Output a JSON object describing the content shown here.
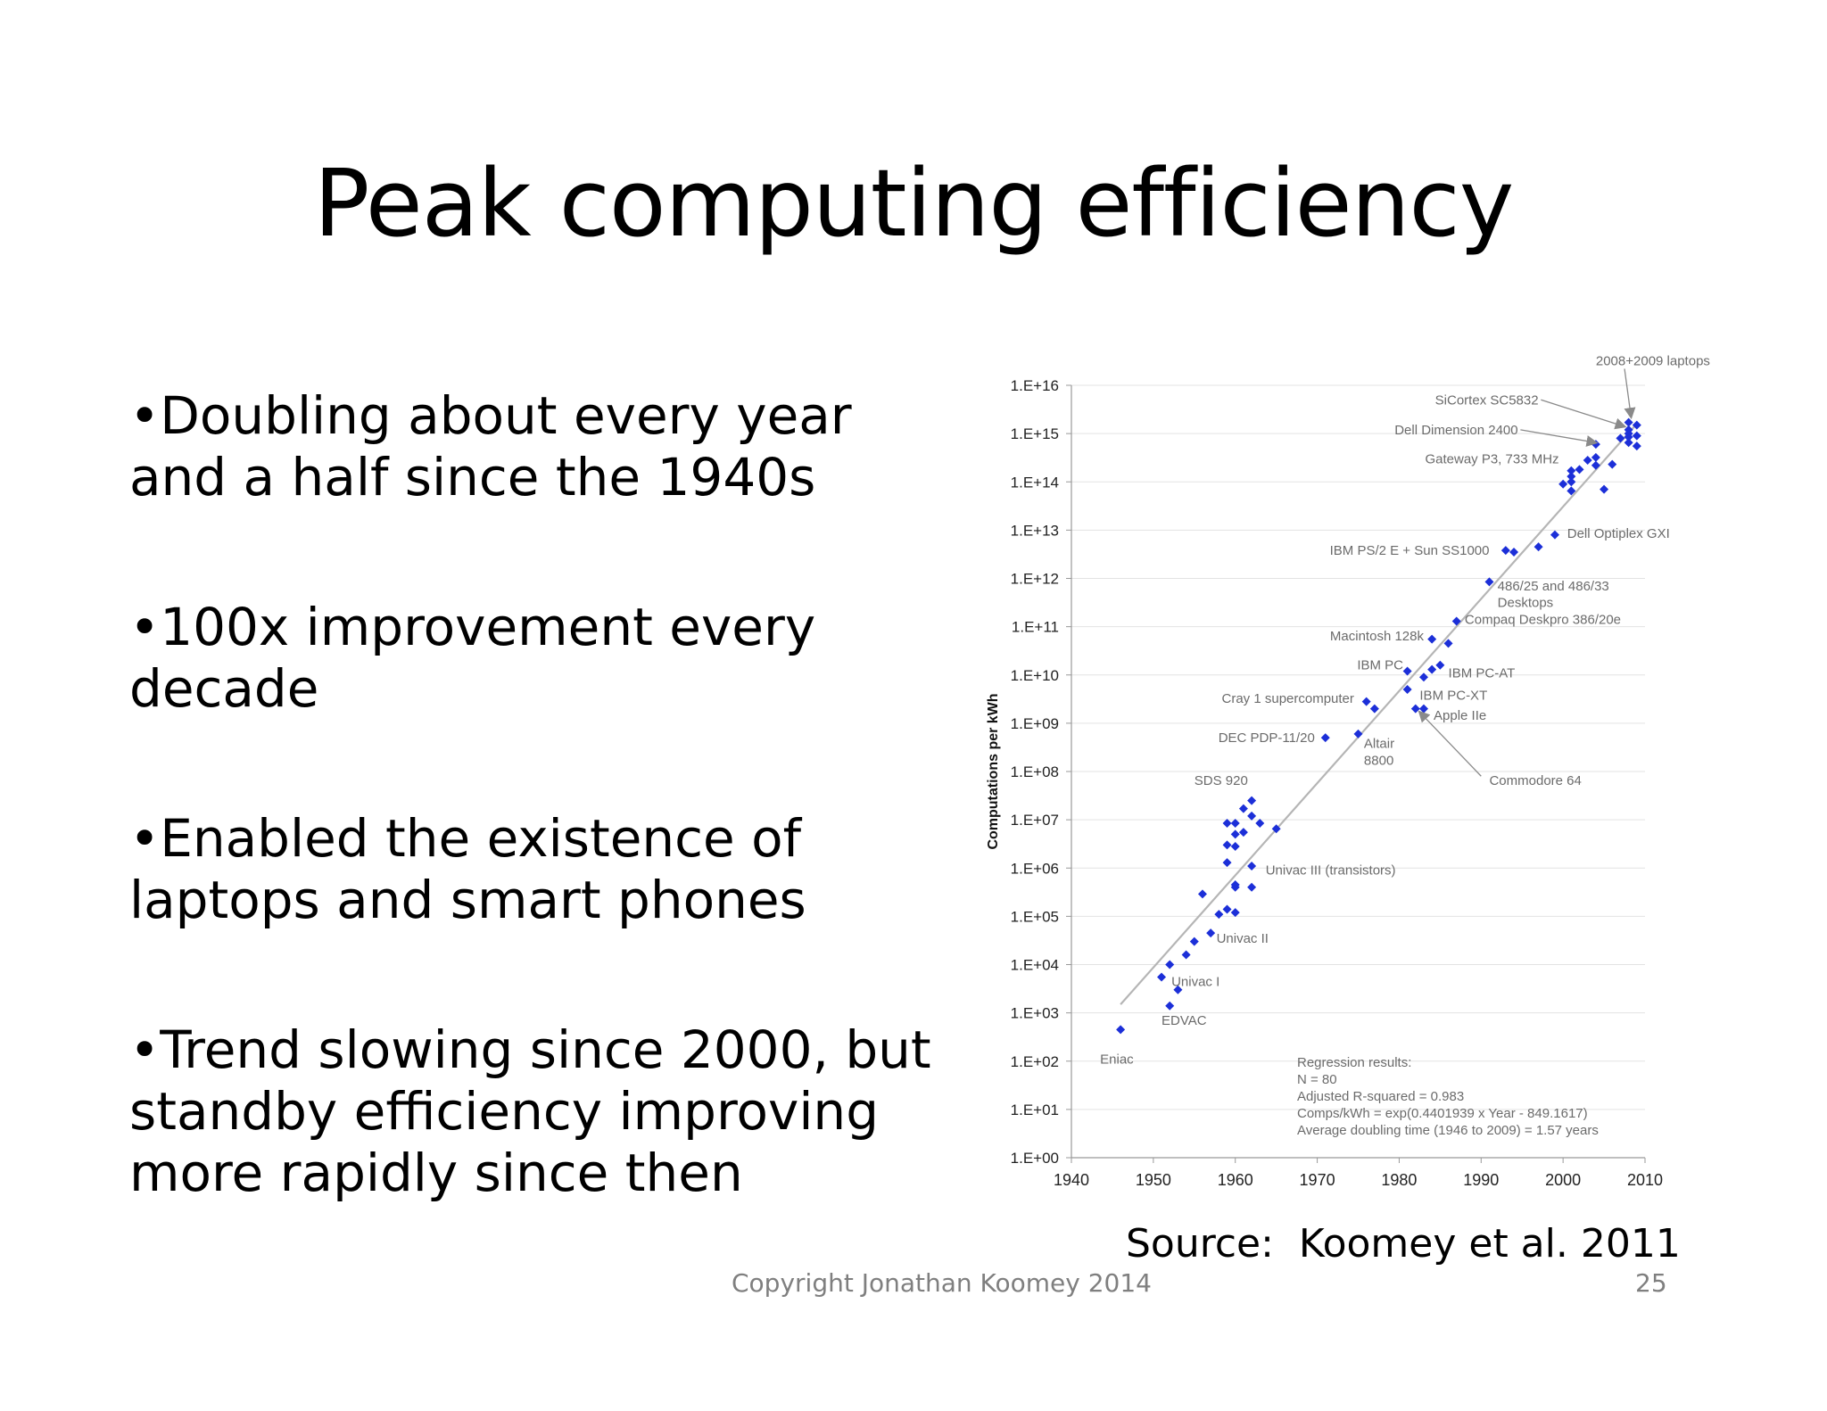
{
  "slide": {
    "title": "Peak computing efficiency",
    "bullets": [
      "Doubling about every year and a half since the 1940s",
      "100x improvement every decade",
      "Enabled the existence of laptops and smart phones",
      "Trend slowing since 2000, but standby efficiency improving more rapidly since then"
    ],
    "source": "Source:  Koomey et al. 2011",
    "copyright": "Copyright Jonathan Koomey 2014",
    "page_number": "25"
  },
  "chart_data": {
    "type": "scatter",
    "ylabel": "Computations per kWh",
    "xlim": [
      1940,
      2010
    ],
    "ylim_exponent": [
      0,
      16
    ],
    "y_scale": "log",
    "grid": "horizontal",
    "x_ticks": [
      "1940",
      "1950",
      "1960",
      "1970",
      "1980",
      "1990",
      "2000",
      "2010"
    ],
    "y_ticks": [
      "1.E+00",
      "1.E+01",
      "1.E+02",
      "1.E+03",
      "1.E+04",
      "1.E+05",
      "1.E+06",
      "1.E+07",
      "1.E+08",
      "1.E+09",
      "1.E+10",
      "1.E+11",
      "1.E+12",
      "1.E+13",
      "1.E+14",
      "1.E+15",
      "1.E+16"
    ],
    "colors": {
      "points": "#1c2fd8",
      "trend": "#b5b5b5",
      "text": "#6b6b6b",
      "grid": "#e3e3e3"
    },
    "points": [
      {
        "x": 1946,
        "y": 450.0
      },
      {
        "x": 1951,
        "y": 5500.0
      },
      {
        "x": 1952,
        "y": 1400.0
      },
      {
        "x": 1952,
        "y": 10000.0
      },
      {
        "x": 1953,
        "y": 3000.0
      },
      {
        "x": 1954,
        "y": 16000.0
      },
      {
        "x": 1955,
        "y": 30000.0
      },
      {
        "x": 1956,
        "y": 290000.0
      },
      {
        "x": 1957,
        "y": 45000.0
      },
      {
        "x": 1958,
        "y": 110000.0
      },
      {
        "x": 1959,
        "y": 140000.0
      },
      {
        "x": 1959,
        "y": 1300000.0
      },
      {
        "x": 1959,
        "y": 3000000.0
      },
      {
        "x": 1959,
        "y": 8500000.0
      },
      {
        "x": 1960,
        "y": 120000.0
      },
      {
        "x": 1960,
        "y": 400000.0
      },
      {
        "x": 1960,
        "y": 450000.0
      },
      {
        "x": 1960,
        "y": 2800000.0
      },
      {
        "x": 1960,
        "y": 5000000.0
      },
      {
        "x": 1960,
        "y": 8500000.0
      },
      {
        "x": 1961,
        "y": 5500000.0
      },
      {
        "x": 1961,
        "y": 17000000.0
      },
      {
        "x": 1962,
        "y": 400000.0
      },
      {
        "x": 1962,
        "y": 1100000.0
      },
      {
        "x": 1962,
        "y": 12000000.0
      },
      {
        "x": 1962,
        "y": 25000000.0
      },
      {
        "x": 1963,
        "y": 8500000.0
      },
      {
        "x": 1965,
        "y": 6500000.0
      },
      {
        "x": 1971,
        "y": 500000000.0
      },
      {
        "x": 1975,
        "y": 600000000.0
      },
      {
        "x": 1976,
        "y": 2800000000.0
      },
      {
        "x": 1977,
        "y": 2000000000.0
      },
      {
        "x": 1981,
        "y": 5000000000.0
      },
      {
        "x": 1981,
        "y": 12000000000.0
      },
      {
        "x": 1982,
        "y": 2000000000.0
      },
      {
        "x": 1983,
        "y": 2000000000.0
      },
      {
        "x": 1983,
        "y": 9000000000.0
      },
      {
        "x": 1984,
        "y": 13000000000.0
      },
      {
        "x": 1984,
        "y": 55000000000.0
      },
      {
        "x": 1985,
        "y": 16000000000.0
      },
      {
        "x": 1986,
        "y": 45000000000.0
      },
      {
        "x": 1987,
        "y": 130000000000.0
      },
      {
        "x": 1991,
        "y": 850000000000.0
      },
      {
        "x": 1993,
        "y": 3800000000000.0
      },
      {
        "x": 1994,
        "y": 3500000000000.0
      },
      {
        "x": 1997,
        "y": 4500000000000.0
      },
      {
        "x": 1999,
        "y": 8000000000000.0
      },
      {
        "x": 2000,
        "y": 90000000000000.0
      },
      {
        "x": 2001,
        "y": 65000000000000.0
      },
      {
        "x": 2001,
        "y": 100000000000000.0
      },
      {
        "x": 2001,
        "y": 130000000000000.0
      },
      {
        "x": 2001,
        "y": 170000000000000.0
      },
      {
        "x": 2002,
        "y": 180000000000000.0
      },
      {
        "x": 2003,
        "y": 280000000000000.0
      },
      {
        "x": 2004,
        "y": 220000000000000.0
      },
      {
        "x": 2004,
        "y": 320000000000000.0
      },
      {
        "x": 2004,
        "y": 600000000000000.0
      },
      {
        "x": 2005,
        "y": 70000000000000.0
      },
      {
        "x": 2006,
        "y": 230000000000000.0
      },
      {
        "x": 2007,
        "y": 800000000000000.0
      },
      {
        "x": 2008,
        "y": 650000000000000.0
      },
      {
        "x": 2008,
        "y": 850000000000000.0
      },
      {
        "x": 2008,
        "y": 1000000000000000.0
      },
      {
        "x": 2008,
        "y": 1200000000000000.0
      },
      {
        "x": 2008,
        "y": 1700000000000000.0
      },
      {
        "x": 2009,
        "y": 550000000000000.0
      },
      {
        "x": 2009,
        "y": 900000000000000.0
      },
      {
        "x": 2009,
        "y": 1500000000000000.0
      }
    ],
    "trend_line": [
      {
        "x": 1946,
        "y": 1500.0
      },
      {
        "x": 2009,
        "y": 1600000000000000.0
      }
    ],
    "annotations": [
      {
        "text": "2008+2009 laptops",
        "x": 2004,
        "y": 3.2e+16,
        "anchor": "start",
        "arrow": {
          "x1": 2007.5,
          "y1": 2.2e+16,
          "x2": 2008.3,
          "y2": 2200000000000000.0
        }
      },
      {
        "text": "SiCortex SC5832",
        "x": 1997,
        "y": 5000000000000000.0,
        "anchor": "end",
        "arrow": {
          "x1": 1997.3,
          "y1": 5000000000000000.0,
          "x2": 2007.5,
          "y2": 1400000000000000.0
        }
      },
      {
        "text": "Dell Dimension 2400",
        "x": 1994.5,
        "y": 1200000000000000.0,
        "anchor": "end",
        "arrow": {
          "x1": 1994.8,
          "y1": 1200000000000000.0,
          "x2": 2004,
          "y2": 650000000000000.0
        }
      },
      {
        "text": "Gateway P3, 733 MHz",
        "x": 1999.5,
        "y": 300000000000000.0,
        "anchor": "end"
      },
      {
        "text": "Dell Optiplex GXI",
        "x": 2000.5,
        "y": 8500000000000.0,
        "anchor": "start"
      },
      {
        "text": "IBM PS/2 E + Sun SS1000",
        "x": 1991,
        "y": 3800000000000.0,
        "anchor": "end"
      },
      {
        "text": "486/25 and 486/33",
        "x": 1992,
        "y": 700000000000.0,
        "anchor": "start"
      },
      {
        "text": "Desktops",
        "x": 1992,
        "y": 320000000000.0,
        "anchor": "start"
      },
      {
        "text": "Compaq Deskpro 386/20e",
        "x": 1988,
        "y": 140000000000.0,
        "anchor": "start"
      },
      {
        "text": "Macintosh 128k",
        "x": 1983,
        "y": 65000000000.0,
        "anchor": "end"
      },
      {
        "text": "IBM PC",
        "x": 1980.5,
        "y": 16000000000.0,
        "anchor": "end"
      },
      {
        "text": "IBM PC-AT",
        "x": 1986,
        "y": 11000000000.0,
        "anchor": "start"
      },
      {
        "text": "Cray 1 supercomputer",
        "x": 1974.5,
        "y": 3300000000.0,
        "anchor": "end"
      },
      {
        "text": "IBM PC-XT",
        "x": 1982.5,
        "y": 3800000000.0,
        "anchor": "start"
      },
      {
        "text": "Apple IIe",
        "x": 1984.2,
        "y": 1450000000.0,
        "anchor": "start"
      },
      {
        "text": "DEC PDP-11/20",
        "x": 1969.7,
        "y": 500000000.0,
        "anchor": "end"
      },
      {
        "text": "Altair",
        "x": 1975.7,
        "y": 380000000.0,
        "anchor": "start"
      },
      {
        "text": "8800",
        "x": 1975.7,
        "y": 170000000.0,
        "anchor": "start"
      },
      {
        "text": "Commodore 64",
        "x": 1991,
        "y": 65000000.0,
        "anchor": "start",
        "arrow": {
          "x1": 1990,
          "y1": 80000000.0,
          "x2": 1982.5,
          "y2": 1700000000.0
        }
      },
      {
        "text": "SDS 920",
        "x": 1955,
        "y": 65000000.0,
        "anchor": "start"
      },
      {
        "text": "Univac III (transistors)",
        "x": 1963.7,
        "y": 900000.0,
        "anchor": "start"
      },
      {
        "text": "Univac II",
        "x": 1957.7,
        "y": 35000.0,
        "anchor": "start"
      },
      {
        "text": "Univac I",
        "x": 1952.2,
        "y": 4500.0,
        "anchor": "start"
      },
      {
        "text": "EDVAC",
        "x": 1951,
        "y": 700.0,
        "anchor": "start"
      },
      {
        "text": "Eniac",
        "x": 1943.5,
        "y": 110.0,
        "anchor": "start"
      }
    ],
    "regression_text": [
      "Regression results:",
      "N = 80",
      "Adjusted R-squared = 0.983",
      "Comps/kWh = exp(0.4401939 x Year - 849.1617)",
      "Average doubling time (1946 to 2009) = 1.57 years"
    ]
  }
}
